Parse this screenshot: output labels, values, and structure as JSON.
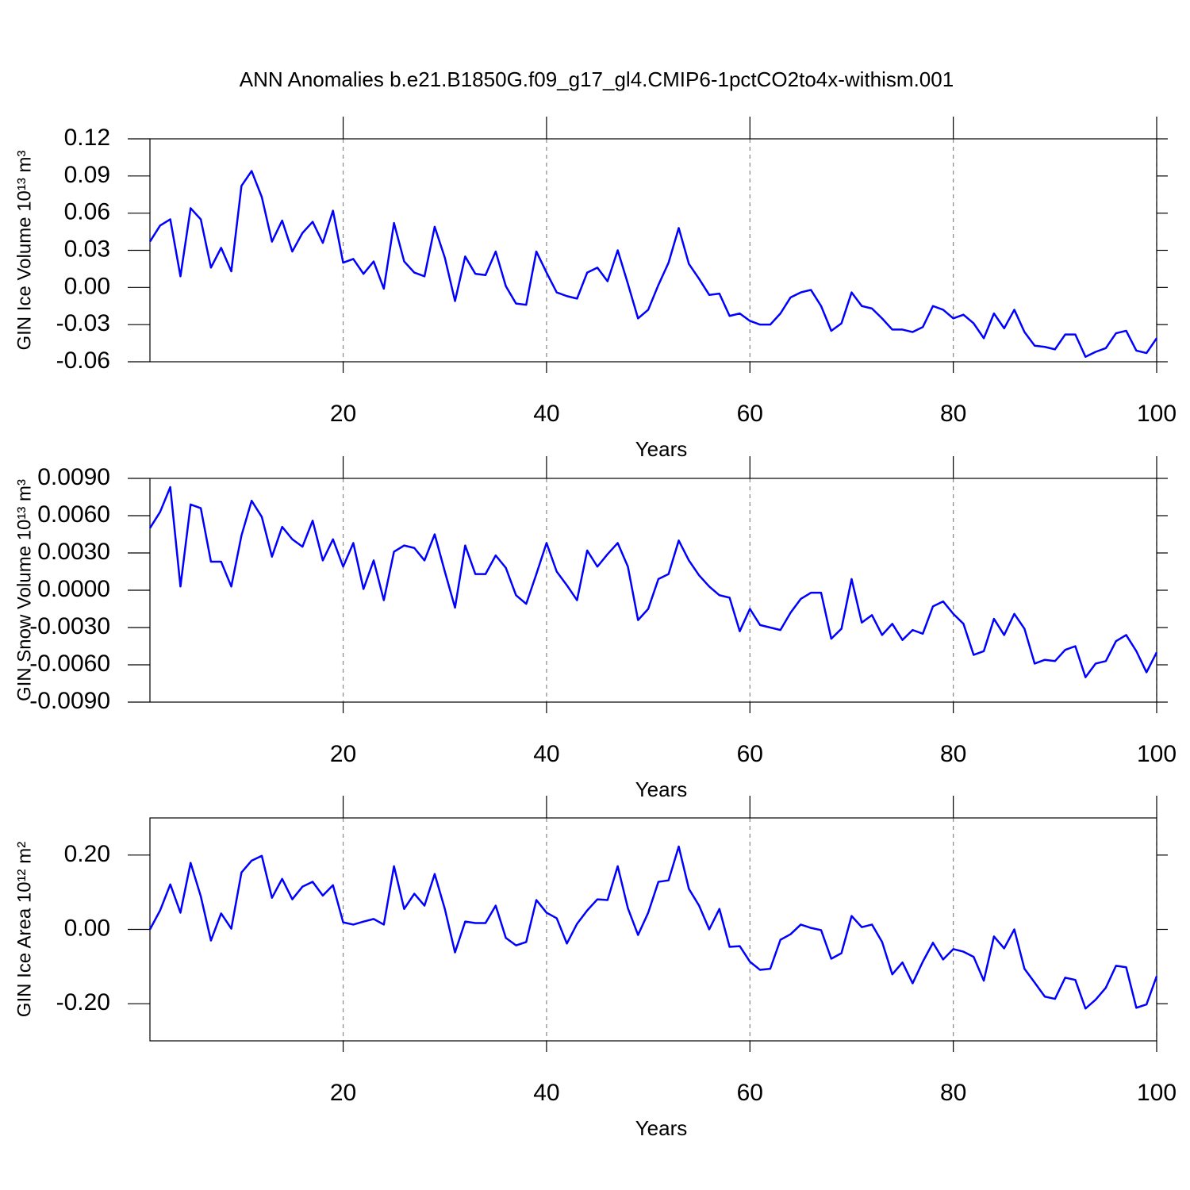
{
  "chart_data": [
    {
      "type": "line",
      "title": "ANN Anomalies b.e21.B1850G.f09_g17_gl4.CMIP6-1pctCO2to4x-withism.001",
      "x_label": "Years",
      "y_label": "GIN Ice Volume 10¹³ m³",
      "color": "#0000ff",
      "grid": true,
      "xlim": [
        1,
        100
      ],
      "xticks": [
        20,
        40,
        60,
        80,
        100
      ],
      "ylim": [
        -0.06,
        0.12
      ],
      "yticks": [
        -0.06,
        -0.03,
        {
          "value": 0,
          "label": "0.00"
        },
        0.03,
        0.06,
        0.09,
        0.12
      ],
      "x": [
        1,
        2,
        3,
        4,
        5,
        6,
        7,
        8,
        9,
        10,
        11,
        12,
        13,
        14,
        15,
        16,
        17,
        18,
        19,
        20,
        21,
        22,
        23,
        24,
        25,
        26,
        27,
        28,
        29,
        30,
        31,
        32,
        33,
        34,
        35,
        36,
        37,
        38,
        39,
        40,
        41,
        42,
        43,
        44,
        45,
        46,
        47,
        48,
        49,
        50,
        51,
        52,
        53,
        54,
        55,
        56,
        57,
        58,
        59,
        60,
        61,
        62,
        63,
        64,
        65,
        66,
        67,
        68,
        69,
        70,
        71,
        72,
        73,
        74,
        75,
        76,
        77,
        78,
        79,
        80,
        81,
        82,
        83,
        84,
        85,
        86,
        87,
        88,
        89,
        90,
        91,
        92,
        93,
        94,
        95,
        96,
        97,
        98,
        99,
        100
      ],
      "values": [
        0.037,
        0.05,
        0.055,
        0.009,
        0.064,
        0.055,
        0.016,
        0.032,
        0.013,
        0.082,
        0.094,
        0.073,
        0.037,
        0.054,
        0.029,
        0.044,
        0.053,
        0.036,
        0.062,
        0.02,
        0.023,
        0.011,
        0.021,
        -0.001,
        0.052,
        0.021,
        0.012,
        0.009,
        0.049,
        0.024,
        -0.011,
        0.025,
        0.011,
        0.01,
        0.029,
        0.001,
        -0.013,
        -0.014,
        0.029,
        0.012,
        -0.004,
        -0.007,
        -0.009,
        0.012,
        0.016,
        0.005,
        0.03,
        0.003,
        -0.025,
        -0.018,
        0.002,
        0.02,
        0.048,
        0.019,
        0.007,
        -0.006,
        -0.005,
        -0.023,
        -0.021,
        -0.027,
        -0.03,
        -0.03,
        -0.021,
        -0.008,
        -0.004,
        -0.002,
        -0.015,
        -0.035,
        -0.029,
        -0.004,
        -0.015,
        -0.017,
        -0.025,
        -0.034,
        -0.034,
        -0.036,
        -0.032,
        -0.015,
        -0.018,
        -0.025,
        -0.022,
        -0.029,
        -0.041,
        -0.021,
        -0.033,
        -0.018,
        -0.036,
        -0.047,
        -0.048,
        -0.05,
        -0.038,
        -0.038,
        -0.056,
        -0.052,
        -0.049,
        -0.037,
        -0.035,
        -0.051,
        -0.053,
        -0.041
      ]
    },
    {
      "type": "line",
      "x_label": "Years",
      "y_label": "GIN Snow Volume 10¹³ m³",
      "color": "#0000ff",
      "grid": true,
      "xlim": [
        1,
        100
      ],
      "xticks": [
        20,
        40,
        60,
        80,
        100
      ],
      "ylim": [
        -0.009,
        0.009
      ],
      "yticks": [
        {
          "value": -0.009,
          "label": "-0.0090"
        },
        {
          "value": -0.006,
          "label": "-0.0060"
        },
        {
          "value": -0.003,
          "label": "-0.0030"
        },
        {
          "value": 0,
          "label": "0.0000"
        },
        {
          "value": 0.003,
          "label": "0.0030"
        },
        {
          "value": 0.006,
          "label": "0.0060"
        },
        {
          "value": 0.009,
          "label": "0.0090"
        }
      ],
      "x": [
        1,
        2,
        3,
        4,
        5,
        6,
        7,
        8,
        9,
        10,
        11,
        12,
        13,
        14,
        15,
        16,
        17,
        18,
        19,
        20,
        21,
        22,
        23,
        24,
        25,
        26,
        27,
        28,
        29,
        30,
        31,
        32,
        33,
        34,
        35,
        36,
        37,
        38,
        39,
        40,
        41,
        42,
        43,
        44,
        45,
        46,
        47,
        48,
        49,
        50,
        51,
        52,
        53,
        54,
        55,
        56,
        57,
        58,
        59,
        60,
        61,
        62,
        63,
        64,
        65,
        66,
        67,
        68,
        69,
        70,
        71,
        72,
        73,
        74,
        75,
        76,
        77,
        78,
        79,
        80,
        81,
        82,
        83,
        84,
        85,
        86,
        87,
        88,
        89,
        90,
        91,
        92,
        93,
        94,
        95,
        96,
        97,
        98,
        99,
        100
      ],
      "values": [
        0.005,
        0.0063,
        0.0083,
        0.0003,
        0.0069,
        0.0066,
        0.0023,
        0.0023,
        0.0003,
        0.0044,
        0.0072,
        0.0059,
        0.0027,
        0.0051,
        0.0041,
        0.0035,
        0.0056,
        0.0024,
        0.0041,
        0.0019,
        0.0038,
        0.0001,
        0.0024,
        -0.0008,
        0.0031,
        0.0036,
        0.0034,
        0.0024,
        0.0045,
        0.0015,
        -0.0014,
        0.0036,
        0.0013,
        0.0013,
        0.0028,
        0.0018,
        -0.0004,
        -0.0011,
        0.0013,
        0.0038,
        0.0015,
        0.0004,
        -0.0008,
        0.0032,
        0.0019,
        0.0029,
        0.0038,
        0.0019,
        -0.0024,
        -0.0015,
        0.0009,
        0.0013,
        0.004,
        0.0024,
        0.0012,
        0.0003,
        -0.0004,
        -0.0006,
        -0.0033,
        -0.0015,
        -0.0028,
        -0.003,
        -0.0032,
        -0.0018,
        -0.0007,
        -0.0002,
        -0.0002,
        -0.0039,
        -0.0031,
        0.0009,
        -0.0026,
        -0.002,
        -0.0036,
        -0.0027,
        -0.004,
        -0.0032,
        -0.0035,
        -0.0013,
        -0.0009,
        -0.0019,
        -0.0027,
        -0.0052,
        -0.0049,
        -0.0023,
        -0.0036,
        -0.0019,
        -0.0031,
        -0.0059,
        -0.0056,
        -0.0057,
        -0.0048,
        -0.0045,
        -0.007,
        -0.0059,
        -0.0057,
        -0.0041,
        -0.0036,
        -0.0049,
        -0.0066,
        -0.005
      ]
    },
    {
      "type": "line",
      "x_label": "Years",
      "y_label": "GIN Ice Area 10¹² m²",
      "color": "#0000ff",
      "grid": true,
      "xlim": [
        1,
        100
      ],
      "xticks": [
        20,
        40,
        60,
        80,
        100
      ],
      "ylim": [
        -0.3,
        0.3
      ],
      "yticks": [
        {
          "value": -0.2,
          "label": "-0.20"
        },
        {
          "value": 0,
          "label": "0.00"
        },
        {
          "value": 0.2,
          "label": "0.20"
        }
      ],
      "x": [
        1,
        2,
        3,
        4,
        5,
        6,
        7,
        8,
        9,
        10,
        11,
        12,
        13,
        14,
        15,
        16,
        17,
        18,
        19,
        20,
        21,
        22,
        23,
        24,
        25,
        26,
        27,
        28,
        29,
        30,
        31,
        32,
        33,
        34,
        35,
        36,
        37,
        38,
        39,
        40,
        41,
        42,
        43,
        44,
        45,
        46,
        47,
        48,
        49,
        50,
        51,
        52,
        53,
        54,
        55,
        56,
        57,
        58,
        59,
        60,
        61,
        62,
        63,
        64,
        65,
        66,
        67,
        68,
        69,
        70,
        71,
        72,
        73,
        74,
        75,
        76,
        77,
        78,
        79,
        80,
        81,
        82,
        83,
        84,
        85,
        86,
        87,
        88,
        89,
        90,
        91,
        92,
        93,
        94,
        95,
        96,
        97,
        98,
        99,
        100
      ],
      "values": [
        0.0,
        0.051,
        0.121,
        0.045,
        0.179,
        0.089,
        -0.03,
        0.043,
        0.002,
        0.153,
        0.185,
        0.198,
        0.085,
        0.136,
        0.081,
        0.115,
        0.128,
        0.091,
        0.119,
        0.019,
        0.013,
        0.021,
        0.028,
        0.013,
        0.17,
        0.055,
        0.096,
        0.064,
        0.149,
        0.055,
        -0.062,
        0.021,
        0.017,
        0.017,
        0.064,
        -0.023,
        -0.043,
        -0.034,
        0.079,
        0.045,
        0.03,
        -0.038,
        0.015,
        0.051,
        0.081,
        0.079,
        0.17,
        0.057,
        -0.015,
        0.045,
        0.128,
        0.132,
        0.223,
        0.109,
        0.064,
        0.0,
        0.055,
        -0.047,
        -0.045,
        -0.087,
        -0.109,
        -0.106,
        -0.028,
        -0.013,
        0.013,
        0.004,
        -0.002,
        -0.079,
        -0.064,
        0.036,
        0.006,
        0.013,
        -0.034,
        -0.121,
        -0.089,
        -0.145,
        -0.087,
        -0.036,
        -0.081,
        -0.053,
        -0.06,
        -0.074,
        -0.138,
        -0.019,
        -0.051,
        0.0,
        -0.106,
        -0.143,
        -0.181,
        -0.187,
        -0.13,
        -0.136,
        -0.213,
        -0.189,
        -0.157,
        -0.098,
        -0.102,
        -0.211,
        -0.202,
        -0.126
      ]
    }
  ]
}
